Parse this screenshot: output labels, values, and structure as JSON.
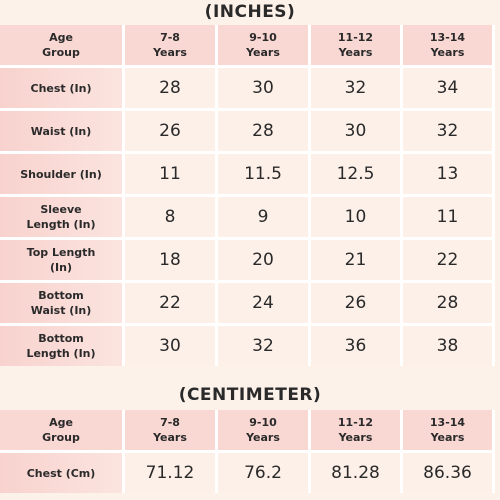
{
  "inches": {
    "title": "(INCHES)",
    "header": [
      "Age\nGroup",
      "7-8\nYears",
      "9-10\nYears",
      "11-12\nYears",
      "13-14\nYears"
    ],
    "rows": [
      [
        "Chest (In)",
        28,
        30,
        32,
        34
      ],
      [
        "Waist (In)",
        26,
        28,
        30,
        32
      ],
      [
        "Shoulder (In)",
        11,
        11.5,
        12.5,
        13
      ],
      [
        "Sleeve\nLength (In)",
        8,
        9,
        10,
        11
      ],
      [
        "Top Length\n(In)",
        18,
        20,
        21,
        22
      ],
      [
        "Bottom\nWaist (In)",
        22,
        24,
        26,
        28
      ],
      [
        "Bottom\nLength (In)",
        30,
        32,
        36,
        38
      ]
    ]
  },
  "centimeter": {
    "title": "(CENTIMETER)",
    "header": [
      "Age\nGroup",
      "7-8\nYears",
      "9-10\nYears",
      "11-12\nYears",
      "13-14\nYears"
    ],
    "rows": [
      [
        "Chest (Cm)",
        71.12,
        76.2,
        81.28,
        86.36
      ]
    ]
  }
}
